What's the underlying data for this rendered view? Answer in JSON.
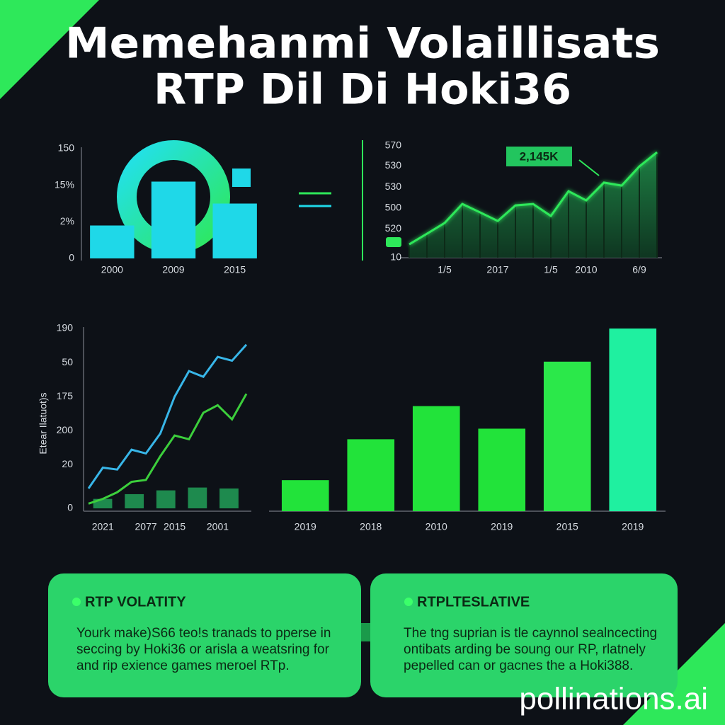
{
  "title_lines": [
    "Memehanmi Volaillisats",
    "RTP Dil Di Hoki36"
  ],
  "chart_data": [
    {
      "type": "bar",
      "categories": [
        "2000",
        "2009",
        "2015"
      ],
      "values": [
        45,
        105,
        75
      ],
      "color": "#1fd8e8",
      "ylim": [
        0,
        150
      ],
      "yticks": [
        0,
        {
          "value": 50,
          "label": "2%"
        },
        {
          "value": 100,
          "label": "15%"
        },
        150
      ]
    },
    {
      "type": "area",
      "annotation": "2,145K",
      "categories": [
        null,
        null,
        "1/5",
        null,
        null,
        "2017",
        null,
        null,
        "1/5",
        null,
        "2010",
        null,
        null,
        "6/9",
        null
      ],
      "values": [
        77,
        130,
        184,
        279,
        237,
        194,
        272,
        279,
        219,
        343,
        297,
        386,
        371,
        467,
        538
      ],
      "color": "#2ee85a",
      "ylim": [
        10,
        570
      ],
      "yticks": [
        10,
        {
          "value": 155,
          "label": "520"
        },
        {
          "value": 258,
          "label": "500"
        },
        {
          "value": 364,
          "label": "530"
        },
        {
          "value": 470,
          "label": "530"
        },
        570
      ]
    },
    {
      "type": "line",
      "ylabel": "Etear Ilatuot)s",
      "categories": [
        null,
        "2021",
        null,
        null,
        "2077",
        null,
        "2015",
        null,
        null,
        "2001",
        null,
        null
      ],
      "series": [
        {
          "color": "#38b6e8",
          "values": [
            21,
            43,
            41,
            62,
            58,
            79,
            118,
            145,
            139,
            160,
            156,
            173
          ]
        },
        {
          "color": "#3ccf3c",
          "values": [
            5,
            10,
            17,
            28,
            30,
            55,
            77,
            73,
            101,
            109,
            94,
            121
          ]
        }
      ],
      "bars": {
        "color": "#1e8a4e",
        "values": [
          10,
          15,
          19,
          22,
          21
        ]
      },
      "ylim": [
        0,
        190
      ],
      "yticks": [
        0,
        {
          "value": 46,
          "label": "20"
        },
        {
          "value": 82,
          "label": "200"
        },
        {
          "value": 118,
          "label": "175"
        },
        {
          "value": 154,
          "label": "50"
        },
        190
      ]
    },
    {
      "type": "bar",
      "categories": [
        "2019",
        "2018",
        "2010",
        "2019",
        "2015",
        "2019"
      ],
      "values": [
        44,
        102,
        149,
        117,
        212,
        259
      ],
      "colors": [
        "#22e33a",
        "#22e33a",
        "#22e33a",
        "#22e33a",
        "#2be84a",
        "#1ff0a0"
      ],
      "ylim": [
        0,
        260
      ]
    }
  ],
  "cards": [
    {
      "heading": "RTP VOLATITY",
      "lines": [
        "Yourk make)S66 teo!s tranads to pperse in",
        "seccing by Hoki36 or arisla a weatsring for",
        "and rip exience games meroel RTp."
      ]
    },
    {
      "heading": "RTPLTESLATIVE",
      "lines": [
        "The tng suprian is tle caynnol sealncecting",
        "ontibats arding be soung our RP, rlatnely",
        "pepelled can or gacnes the a Hoki388."
      ]
    }
  ],
  "watermark": "pollinations.ai"
}
